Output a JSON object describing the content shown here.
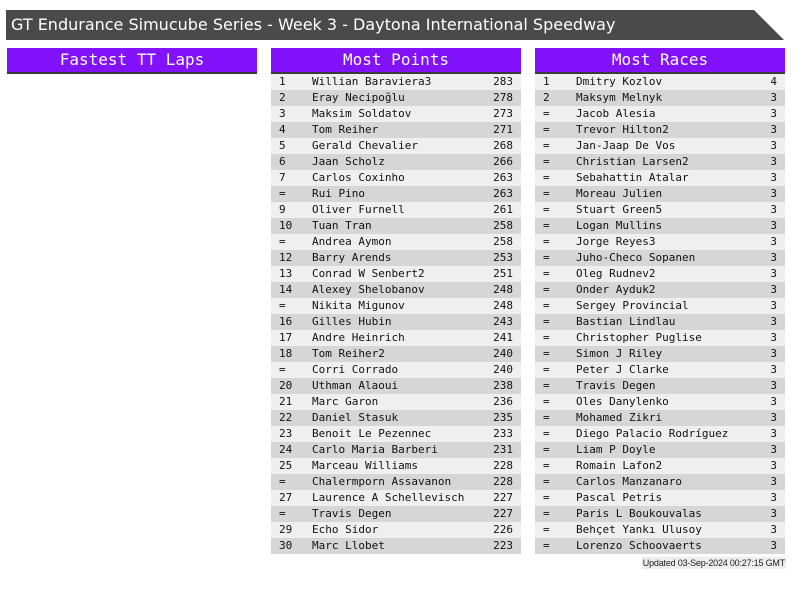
{
  "title": "GT Endurance Simucube Series - Week 3 - Daytona International Speedway",
  "panels": {
    "fastest": {
      "title": "Fastest TT Laps",
      "rows": []
    },
    "points": {
      "title": "Most Points",
      "rows": [
        [
          "1",
          "Willian Baraviera3",
          "283"
        ],
        [
          "2",
          "Eray Necipoğlu",
          "278"
        ],
        [
          "3",
          "Maksim Soldatov",
          "273"
        ],
        [
          "4",
          "Tom Reiher",
          "271"
        ],
        [
          "5",
          "Gerald Chevalier",
          "268"
        ],
        [
          "6",
          "Jaan Scholz",
          "266"
        ],
        [
          "7",
          "Carlos Coxinho",
          "263"
        ],
        [
          "=",
          "Rui Pino",
          "263"
        ],
        [
          "9",
          "Oliver Furnell",
          "261"
        ],
        [
          "10",
          "Tuan Tran",
          "258"
        ],
        [
          "=",
          "Andrea Aymon",
          "258"
        ],
        [
          "12",
          "Barry Arends",
          "253"
        ],
        [
          "13",
          "Conrad W Senbert2",
          "251"
        ],
        [
          "14",
          "Alexey Shelobanov",
          "248"
        ],
        [
          "=",
          "Nikita Migunov",
          "248"
        ],
        [
          "16",
          "Gilles Hubin",
          "243"
        ],
        [
          "17",
          "Andre Heinrich",
          "241"
        ],
        [
          "18",
          "Tom Reiher2",
          "240"
        ],
        [
          "=",
          "Corri Corrado",
          "240"
        ],
        [
          "20",
          "Uthman Alaoui",
          "238"
        ],
        [
          "21",
          "Marc Garon",
          "236"
        ],
        [
          "22",
          "Daniel Stasuk",
          "235"
        ],
        [
          "23",
          "Benoit Le Pezennec",
          "233"
        ],
        [
          "24",
          "Carlo Maria Barberi",
          "231"
        ],
        [
          "25",
          "Marceau Williams",
          "228"
        ],
        [
          "=",
          "Chalermporn Assavanon",
          "228"
        ],
        [
          "27",
          "Laurence A Schellevisch",
          "227"
        ],
        [
          "=",
          "Travis Degen",
          "227"
        ],
        [
          "29",
          "Echo Sidor",
          "226"
        ],
        [
          "30",
          "Marc Llobet",
          "223"
        ]
      ]
    },
    "races": {
      "title": "Most Races",
      "rows": [
        [
          "1",
          "Dmitry Kozlov",
          "4"
        ],
        [
          "2",
          "Maksym Melnyk",
          "3"
        ],
        [
          "=",
          "Jacob Alesia",
          "3"
        ],
        [
          "=",
          "Trevor Hilton2",
          "3"
        ],
        [
          "=",
          "Jan-Jaap De Vos",
          "3"
        ],
        [
          "=",
          "Christian Larsen2",
          "3"
        ],
        [
          "=",
          "Sebahattin Atalar",
          "3"
        ],
        [
          "=",
          "Moreau Julien",
          "3"
        ],
        [
          "=",
          "Stuart Green5",
          "3"
        ],
        [
          "=",
          "Logan Mullins",
          "3"
        ],
        [
          "=",
          "Jorge Reyes3",
          "3"
        ],
        [
          "=",
          "Juho-Checo Sopanen",
          "3"
        ],
        [
          "=",
          "Oleg Rudnev2",
          "3"
        ],
        [
          "=",
          "Onder Ayduk2",
          "3"
        ],
        [
          "=",
          "Sergey Provincial",
          "3"
        ],
        [
          "=",
          "Bastian Lindlau",
          "3"
        ],
        [
          "=",
          "Christopher Puglise",
          "3"
        ],
        [
          "=",
          "Simon J Riley",
          "3"
        ],
        [
          "=",
          "Peter J Clarke",
          "3"
        ],
        [
          "=",
          "Travis Degen",
          "3"
        ],
        [
          "=",
          "Oles Danylenko",
          "3"
        ],
        [
          "=",
          "Mohamed Zikri",
          "3"
        ],
        [
          "=",
          "Diego Palacio Rodríguez",
          "3"
        ],
        [
          "=",
          "Liam P Doyle",
          "3"
        ],
        [
          "=",
          "Romain Lafon2",
          "3"
        ],
        [
          "=",
          "Carlos Manzanaro",
          "3"
        ],
        [
          "=",
          "Pascal Petris",
          "3"
        ],
        [
          "=",
          "Paris L Boukouvalas",
          "3"
        ],
        [
          "=",
          "Behçet Yankı Ulusoy",
          "3"
        ],
        [
          "=",
          "Lorenzo Schoovaerts",
          "3"
        ]
      ]
    }
  },
  "updated": "Updated 03-Sep-2024 00:27:15 GMT",
  "colors": {
    "header_bg": "#4a4a4a",
    "panel_head": "#8212fb",
    "row_light": "#efefef",
    "row_dark": "#d6d6d6"
  }
}
